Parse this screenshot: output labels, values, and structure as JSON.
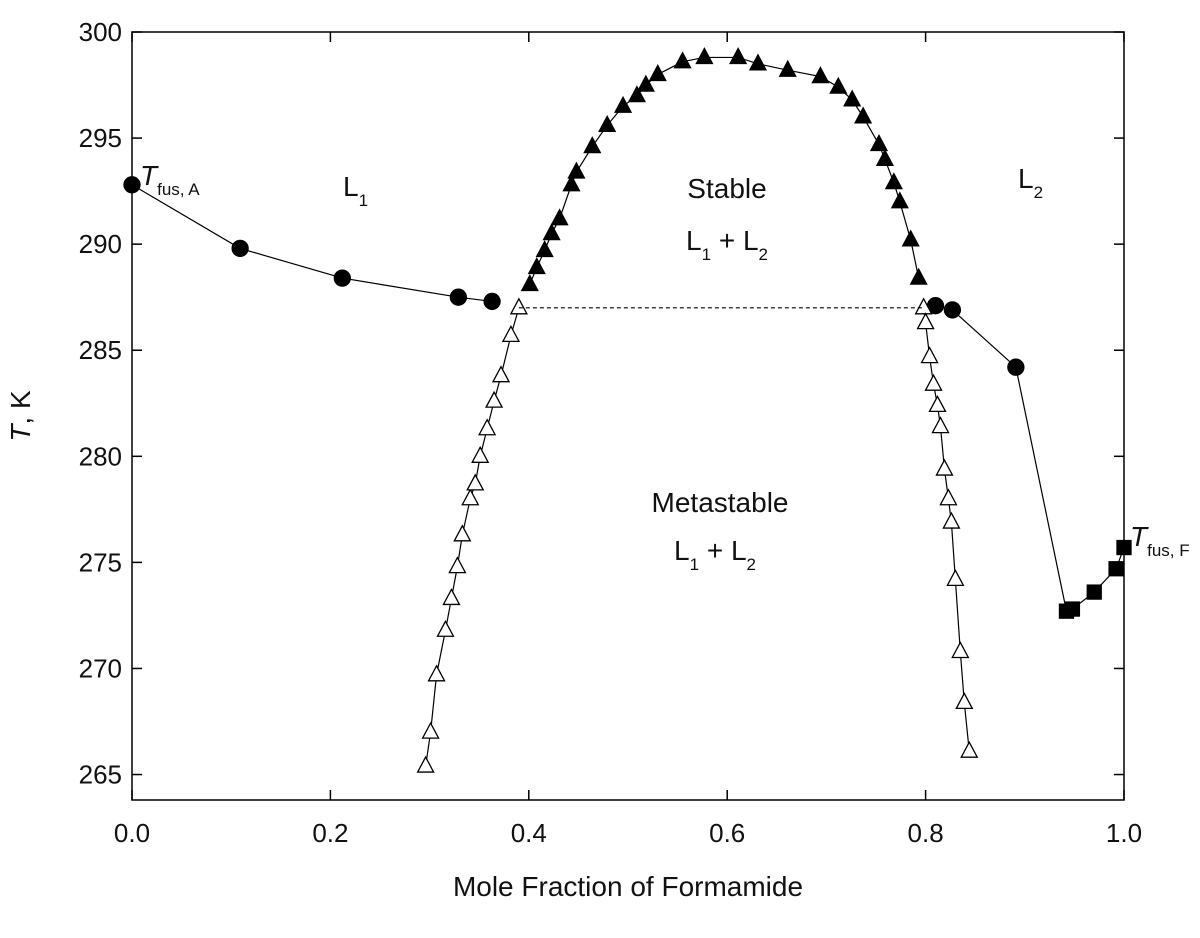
{
  "chart_data": {
    "type": "scatter",
    "xlabel": "Mole Fraction of Formamide",
    "ylabel": {
      "runs": [
        {
          "text": "T",
          "italic": true
        },
        {
          "text": ", K"
        }
      ]
    },
    "xlim": [
      0,
      1
    ],
    "ylim": [
      263.8,
      300
    ],
    "xticks": [
      {
        "value": 0,
        "label": "0.0"
      },
      0.2,
      0.4,
      0.6,
      0.8,
      {
        "value": 1,
        "label": "1.0"
      }
    ],
    "yticks": [
      265,
      270,
      275,
      280,
      285,
      290,
      295,
      300
    ],
    "series": [
      {
        "marker": "circle",
        "filled": true,
        "line": "solid",
        "color": "#000000",
        "x": [
          0,
          0.109,
          0.212,
          0.329,
          0.363
        ],
        "values": [
          292.8,
          289.8,
          288.4,
          287.5,
          287.3
        ]
      },
      {
        "marker": [
          "circle",
          "circle",
          "circle",
          "square",
          "square",
          "square",
          "square",
          "square"
        ],
        "filled": true,
        "line": "solid",
        "color": "#000000",
        "x": [
          0.81,
          0.827,
          0.891,
          0.942,
          0.948,
          0.97,
          0.992,
          1.0
        ],
        "values": [
          287.1,
          286.9,
          284.2,
          272.7,
          272.8,
          273.6,
          274.7,
          275.7
        ]
      },
      {
        "marker": "triangle",
        "filled": true,
        "line": "solid",
        "color": "#000000",
        "x": [
          0.401,
          0.408,
          0.416,
          0.423,
          0.431,
          0.443,
          0.448,
          0.464,
          0.479,
          0.495,
          0.509,
          0.518,
          0.53,
          0.555,
          0.577,
          0.611,
          0.631,
          0.661,
          0.694,
          0.712,
          0.726,
          0.737,
          0.753,
          0.759,
          0.768,
          0.774,
          0.785,
          0.793
        ],
        "values": [
          288.1,
          288.9,
          289.7,
          290.5,
          291.2,
          292.8,
          293.4,
          294.6,
          295.6,
          296.5,
          297.0,
          297.5,
          298.0,
          298.6,
          298.8,
          298.8,
          298.5,
          298.2,
          297.9,
          297.4,
          296.8,
          296.0,
          294.7,
          294.0,
          292.9,
          292.0,
          290.2,
          288.4
        ]
      },
      {
        "marker": "triangle",
        "filled": false,
        "line": "solid",
        "color": "#000000",
        "x": [
          0.296,
          0.301,
          0.307,
          0.316,
          0.322,
          0.328,
          0.333,
          0.341,
          0.346,
          0.351,
          0.358,
          0.365,
          0.372,
          0.382,
          0.39
        ],
        "values": [
          265.4,
          267.0,
          269.7,
          271.8,
          273.3,
          274.8,
          276.3,
          278.0,
          278.7,
          280.0,
          281.3,
          282.6,
          283.8,
          285.7,
          287.0
        ]
      },
      {
        "marker": "triangle",
        "filled": false,
        "line": "solid",
        "color": "#000000",
        "x": [
          0.798,
          0.8,
          0.804,
          0.808,
          0.812,
          0.815,
          0.819,
          0.823,
          0.826,
          0.83,
          0.835,
          0.839,
          0.844
        ],
        "values": [
          287.0,
          286.3,
          284.7,
          283.4,
          282.4,
          281.4,
          279.4,
          278.0,
          276.9,
          274.2,
          270.8,
          268.4,
          266.1
        ]
      },
      {
        "marker": "none",
        "filled": false,
        "line": "dashed",
        "color": "#000000",
        "x": [
          0.39,
          0.798
        ],
        "values": [
          287.0,
          287.0
        ]
      }
    ],
    "annotations": [
      {
        "runs": [
          {
            "text": "T",
            "italic": true
          },
          {
            "text": "fus, A",
            "sub": true
          }
        ]
      },
      {
        "runs": [
          {
            "text": "L"
          },
          {
            "text": "1",
            "sub": true
          }
        ]
      },
      {
        "runs": [
          {
            "text": "Stable"
          }
        ]
      },
      {
        "runs": [
          {
            "text": "L"
          },
          {
            "text": "1",
            "sub": true
          },
          {
            "text": " + L"
          },
          {
            "text": "2",
            "sub": true
          }
        ]
      },
      {
        "runs": [
          {
            "text": "L"
          },
          {
            "text": "2",
            "sub": true
          }
        ]
      },
      {
        "runs": [
          {
            "text": "Metastable"
          }
        ]
      },
      {
        "runs": [
          {
            "text": "L"
          },
          {
            "text": "1",
            "sub": true
          },
          {
            "text": " + L"
          },
          {
            "text": "2",
            "sub": true
          }
        ]
      },
      {
        "runs": [
          {
            "text": "T",
            "italic": true
          },
          {
            "text": "fus, F",
            "sub": true
          }
        ]
      }
    ]
  }
}
